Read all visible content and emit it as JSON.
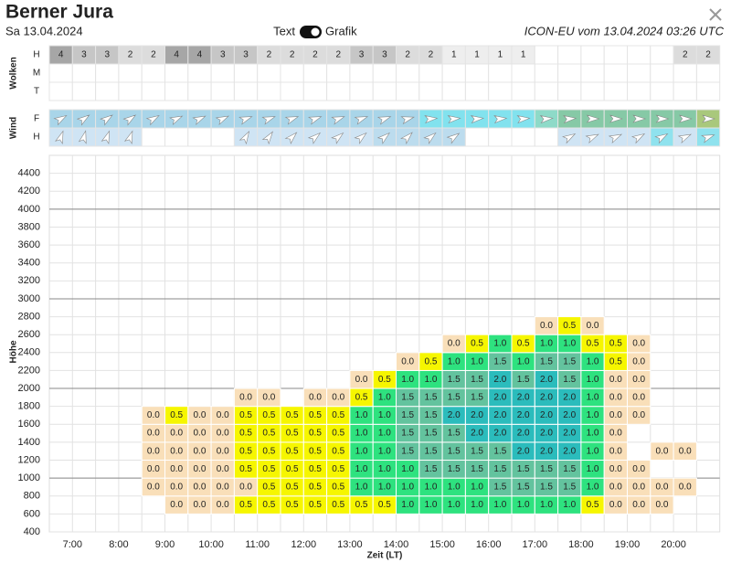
{
  "header": {
    "title": "Berner Jura",
    "date": "Sa 13.04.2024",
    "toggle_left": "Text",
    "toggle_right": "Grafik",
    "model": "ICON-EU vom 13.04.2024 03:26 UTC"
  },
  "clouds": {
    "label": "Wolken",
    "colors": {
      "1": "#eeeeee",
      "2": "#dcdcdc",
      "3": "#c6c6c6",
      "4": "#a6a6a6"
    },
    "rows": [
      {
        "name": "H",
        "values": [
          4,
          3,
          3,
          2,
          2,
          4,
          4,
          3,
          3,
          2,
          2,
          2,
          2,
          3,
          3,
          2,
          2,
          1,
          1,
          1,
          1,
          null,
          null,
          null,
          null,
          null,
          null,
          2,
          2
        ]
      },
      {
        "name": "M",
        "values": [
          null,
          null,
          null,
          null,
          null,
          null,
          null,
          null,
          null,
          null,
          null,
          null,
          null,
          null,
          null,
          null,
          null,
          null,
          null,
          null,
          null,
          null,
          null,
          null,
          null,
          null,
          null,
          null,
          null
        ]
      },
      {
        "name": "T",
        "values": [
          null,
          null,
          null,
          null,
          null,
          null,
          null,
          null,
          null,
          null,
          null,
          null,
          null,
          null,
          null,
          null,
          null,
          null,
          null,
          null,
          null,
          null,
          null,
          null,
          null,
          null,
          null,
          null,
          null
        ]
      }
    ]
  },
  "wind": {
    "label": "Wind",
    "rows": [
      {
        "name": "F",
        "direction": [
          60,
          55,
          55,
          55,
          60,
          65,
          65,
          65,
          70,
          70,
          70,
          70,
          70,
          70,
          70,
          75,
          85,
          85,
          85,
          85,
          85,
          85,
          85,
          90,
          90,
          90,
          90,
          90,
          90
        ],
        "colors": [
          "#a9d5e9",
          "#a9d5e9",
          "#a9d5e9",
          "#a9d5e9",
          "#a9d5e9",
          "#a9d5e9",
          "#a9d5e9",
          "#a9d5e9",
          "#a9d5e9",
          "#a9d5e9",
          "#a9d5e9",
          "#a9d5e9",
          "#a9d5e9",
          "#a9d5e9",
          "#a9d5e9",
          "#a9d5e9",
          "#82e2ee",
          "#82e2ee",
          "#82e2ee",
          "#82e2ee",
          "#82e2ee",
          "#8edac8",
          "#86c9a6",
          "#86c9a6",
          "#86c9a6",
          "#86c9a6",
          "#86c9a6",
          "#86c9a6",
          "#a9c87c"
        ]
      },
      {
        "name": "H",
        "direction": [
          20,
          15,
          20,
          20,
          null,
          null,
          null,
          null,
          30,
          35,
          45,
          50,
          50,
          50,
          50,
          45,
          50,
          55,
          null,
          null,
          null,
          null,
          60,
          65,
          65,
          60,
          60,
          65,
          70
        ],
        "colors": [
          "#cfe4f4",
          "#cfe4f4",
          "#cfe4f4",
          "#cfe4f4",
          null,
          null,
          null,
          null,
          "#cfe4f4",
          "#cfe4f4",
          "#cfe4f4",
          "#cfe4f4",
          "#cfe4f4",
          "#cfe4f4",
          "#bcdcee",
          "#bcdcee",
          "#bcdcee",
          "#bcdcee",
          null,
          null,
          null,
          null,
          "#cfe4f4",
          "#cfe4f4",
          "#cfe4f4",
          "#cfe4f4",
          "#8fe2ee",
          "#cfe4f4",
          "#8fe2ee"
        ]
      }
    ]
  },
  "thermik": {
    "y_title": "Höhe",
    "x_title": "Zeit (LT)",
    "ylim": [
      400,
      4600
    ],
    "yticks": [
      400,
      600,
      800,
      1000,
      1200,
      1400,
      1600,
      1800,
      2000,
      2200,
      2400,
      2600,
      2800,
      3000,
      3200,
      3400,
      3600,
      3800,
      4000,
      4200,
      4400
    ],
    "major_lines": [
      1000,
      2000,
      3000,
      4000
    ],
    "x_labels": [
      "7:00",
      "8:00",
      "9:00",
      "10:00",
      "11:00",
      "12:00",
      "13:00",
      "14:00",
      "15:00",
      "16:00",
      "17:00",
      "18:00",
      "19:00",
      "20:00"
    ],
    "colors": {
      "0.0": "#f9dfb9",
      "0.5": "#f6f600",
      "1.0": "#2ee27f",
      "1.5": "#63c39e",
      "2.0": "#2bbcbc"
    },
    "levels": [
      600,
      800,
      1000,
      1200,
      1400,
      1600,
      1800,
      2000,
      2200,
      2400,
      2600
    ],
    "rows": [
      [
        null,
        null,
        null,
        null,
        null,
        "0.0",
        "0.0",
        "0.0",
        "0.5",
        "0.5",
        "0.5",
        "0.5",
        "0.5",
        "0.5",
        "0.5",
        "1.0",
        "1.0",
        "1.0",
        "1.0",
        "1.0",
        "1.0",
        "1.0",
        "1.0",
        "0.5",
        "0.0",
        "0.0",
        "0.0",
        null,
        null
      ],
      [
        null,
        null,
        null,
        null,
        "0.0",
        "0.0",
        "0.0",
        "0.0",
        "0.0",
        "0.5",
        "0.5",
        "0.5",
        "0.5",
        "1.0",
        "1.0",
        "1.0",
        "1.0",
        "1.0",
        "1.0",
        "1.5",
        "1.5",
        "1.5",
        "1.5",
        "1.0",
        "0.0",
        "0.0",
        "0.0",
        "0.0",
        null
      ],
      [
        null,
        null,
        null,
        null,
        "0.0",
        "0.0",
        "0.0",
        "0.0",
        "0.5",
        "0.5",
        "0.5",
        "0.5",
        "0.5",
        "1.0",
        "1.0",
        "1.0",
        "1.5",
        "1.5",
        "1.5",
        "1.5",
        "1.5",
        "1.5",
        "1.5",
        "1.0",
        "0.0",
        "0.0",
        null,
        null,
        null
      ],
      [
        null,
        null,
        null,
        null,
        "0.0",
        "0.0",
        "0.0",
        "0.0",
        "0.5",
        "0.5",
        "0.5",
        "0.5",
        "0.5",
        "1.0",
        "1.0",
        "1.5",
        "1.5",
        "1.5",
        "1.5",
        "1.5",
        "2.0",
        "2.0",
        "2.0",
        "1.0",
        "0.0",
        null,
        "0.0",
        "0.0",
        null
      ],
      [
        null,
        null,
        null,
        null,
        "0.0",
        "0.0",
        "0.0",
        "0.0",
        "0.5",
        "0.5",
        "0.5",
        "0.5",
        "0.5",
        "1.0",
        "1.0",
        "1.5",
        "1.5",
        "1.5",
        "2.0",
        "2.0",
        "2.0",
        "2.0",
        "2.0",
        "1.0",
        "0.0",
        null,
        null,
        null,
        null
      ],
      [
        null,
        null,
        null,
        null,
        "0.0",
        "0.5",
        "0.0",
        "0.0",
        "0.5",
        "0.5",
        "0.5",
        "0.5",
        "0.5",
        "1.0",
        "1.0",
        "1.5",
        "1.5",
        "2.0",
        "2.0",
        "2.0",
        "2.0",
        "2.0",
        "2.0",
        "1.0",
        "0.0",
        "0.0",
        null,
        null,
        null
      ],
      [
        null,
        null,
        null,
        null,
        null,
        null,
        null,
        null,
        "0.0",
        "0.0",
        null,
        "0.0",
        "0.0",
        "0.5",
        "1.0",
        "1.5",
        "1.5",
        "1.5",
        "1.5",
        "2.0",
        "2.0",
        "2.0",
        "2.0",
        "1.0",
        "0.0",
        "0.0",
        null,
        null,
        null
      ],
      [
        null,
        null,
        null,
        null,
        null,
        null,
        null,
        null,
        null,
        null,
        null,
        null,
        null,
        "0.0",
        "0.5",
        "1.0",
        "1.0",
        "1.5",
        "1.5",
        "2.0",
        "1.5",
        "2.0",
        "1.5",
        "1.0",
        "0.0",
        "0.0",
        null,
        null,
        null
      ],
      [
        null,
        null,
        null,
        null,
        null,
        null,
        null,
        null,
        null,
        null,
        null,
        null,
        null,
        null,
        null,
        "0.0",
        "0.5",
        "1.0",
        "1.0",
        "1.5",
        "1.0",
        "1.5",
        "1.5",
        "1.0",
        "0.5",
        "0.0",
        null,
        null,
        null
      ],
      [
        null,
        null,
        null,
        null,
        null,
        null,
        null,
        null,
        null,
        null,
        null,
        null,
        null,
        null,
        null,
        null,
        null,
        "0.0",
        "0.5",
        "1.0",
        "0.5",
        "1.0",
        "1.0",
        "0.5",
        "0.5",
        "0.0",
        null,
        null,
        null
      ],
      [
        null,
        null,
        null,
        null,
        null,
        null,
        null,
        null,
        null,
        null,
        null,
        null,
        null,
        null,
        null,
        null,
        null,
        null,
        null,
        null,
        null,
        "0.0",
        "0.5",
        "0.0",
        null,
        null,
        null,
        null,
        null
      ]
    ]
  }
}
